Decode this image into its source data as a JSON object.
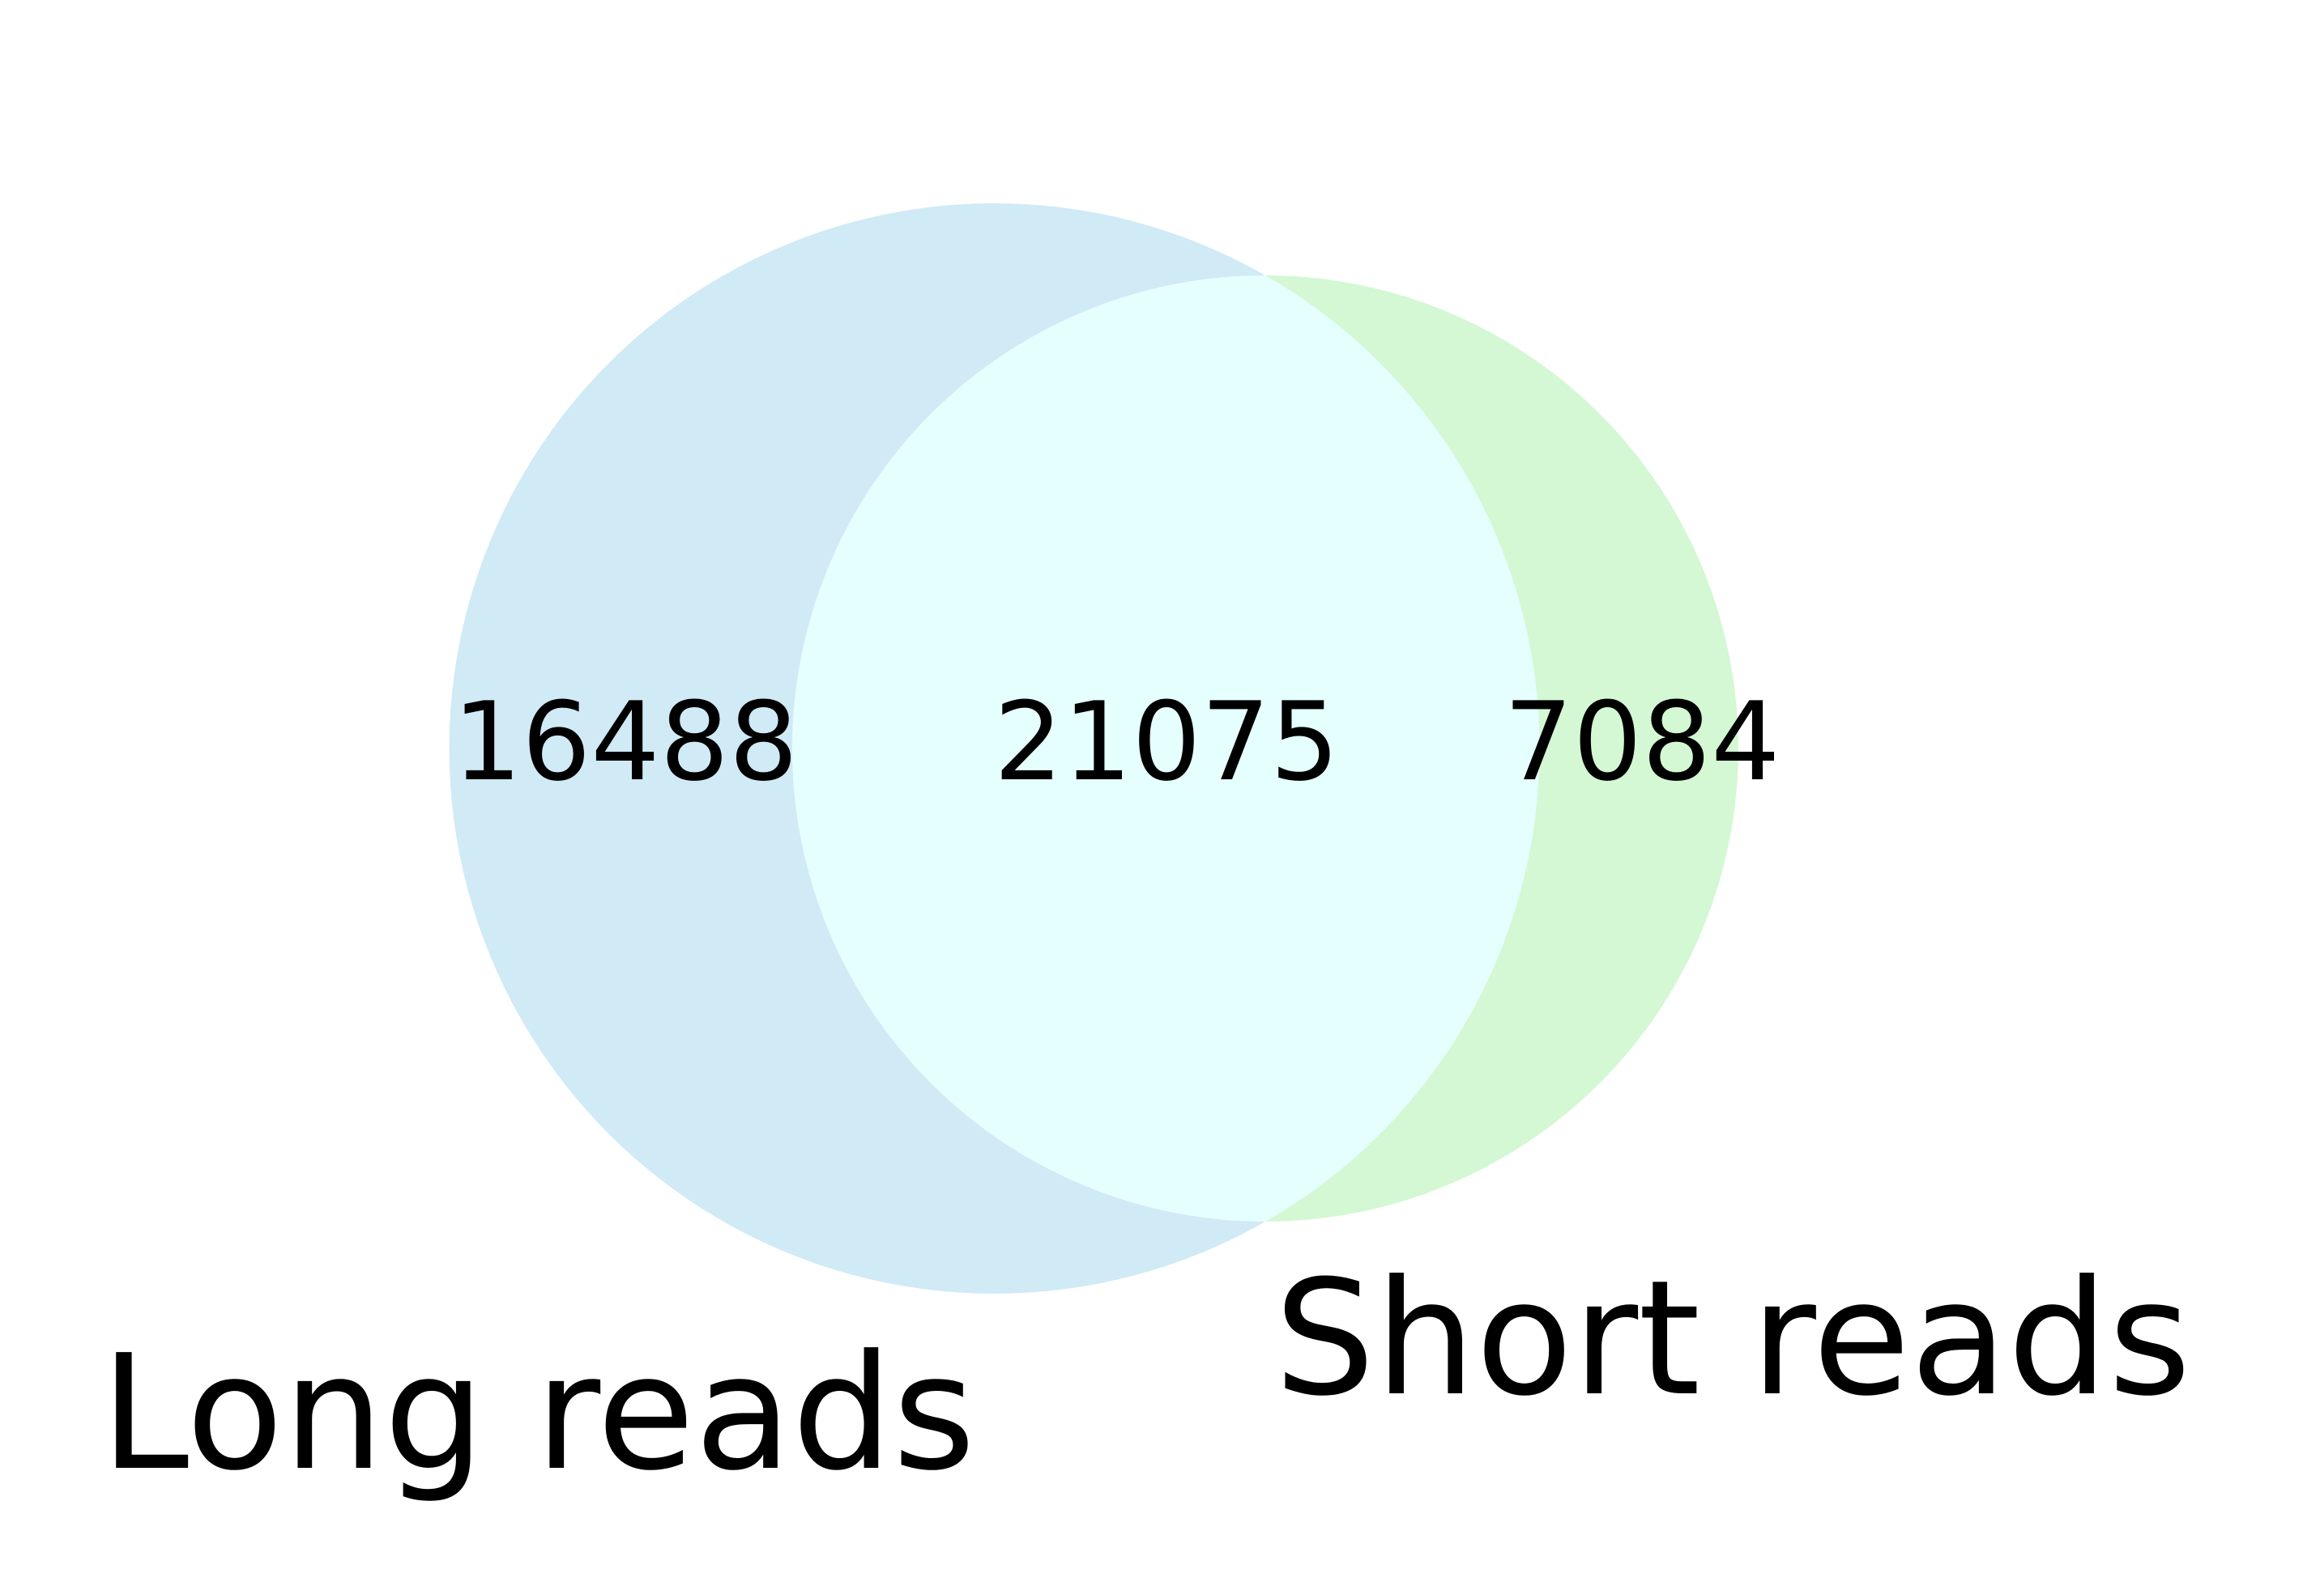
{
  "diagram": {
    "type": "venn2",
    "sets": [
      {
        "key": "A",
        "label": "Long reads",
        "color": "#d0eaf6"
      },
      {
        "key": "B",
        "label": "Short reads",
        "color": "#d3f8d3"
      }
    ],
    "regions": {
      "only_A": "16488",
      "A_and_B": "21075",
      "only_B": "7084"
    },
    "intersection_color": "#e5fefe",
    "background": "#ffffff"
  }
}
